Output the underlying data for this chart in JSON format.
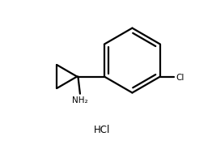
{
  "background_color": "#ffffff",
  "line_color": "#000000",
  "line_width": 1.6,
  "text_color": "#000000",
  "nh2_label": "NH₂",
  "hcl_label": "HCl",
  "cl_label": "Cl",
  "font_size_labels": 7.5,
  "font_size_hcl": 8.5,
  "figsize": [
    2.62,
    2.01
  ],
  "dpi": 100,
  "xlim": [
    0,
    10
  ],
  "ylim": [
    0,
    8
  ]
}
